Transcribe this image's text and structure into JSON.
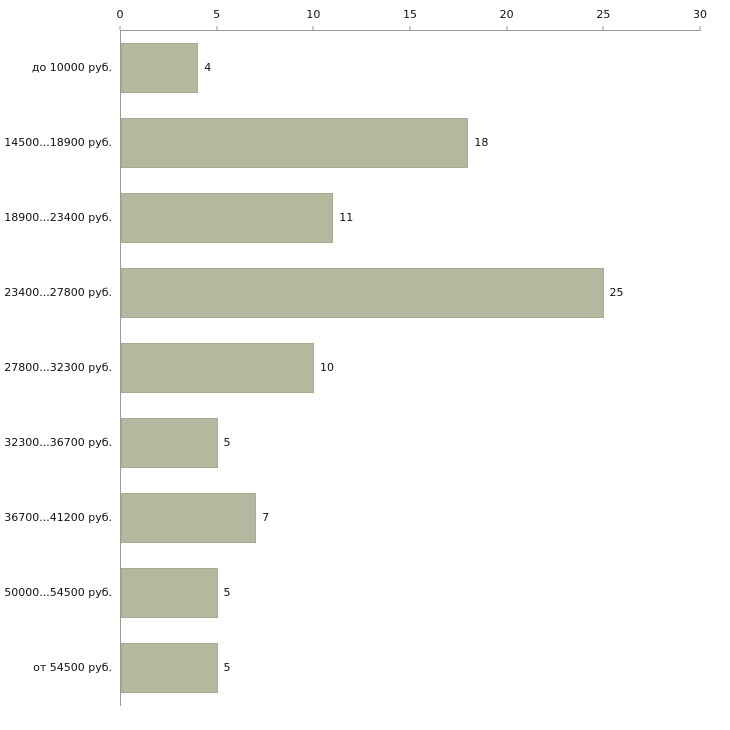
{
  "chart_data": {
    "type": "bar",
    "orientation": "horizontal",
    "title": "",
    "xlabel": "",
    "ylabel": "",
    "categories": [
      "до 10000 руб.",
      "14500...18900 руб.",
      "18900...23400 руб.",
      "23400...27800 руб.",
      "27800...32300 руб.",
      "32300...36700 руб.",
      "36700...41200 руб.",
      "50000...54500 руб.",
      "от 54500 руб."
    ],
    "values": [
      4,
      18,
      11,
      25,
      10,
      5,
      7,
      5,
      5
    ],
    "xlim": [
      0,
      30
    ],
    "xticks": [
      0,
      5,
      10,
      15,
      20,
      25,
      30
    ],
    "grid": false,
    "legend": "none",
    "colors": {
      "bar_fill": "#b3b89e",
      "bar_border": "#a6ac90",
      "axis": "#9a9a9a",
      "text": "#111111",
      "background": "#ffffff"
    }
  }
}
